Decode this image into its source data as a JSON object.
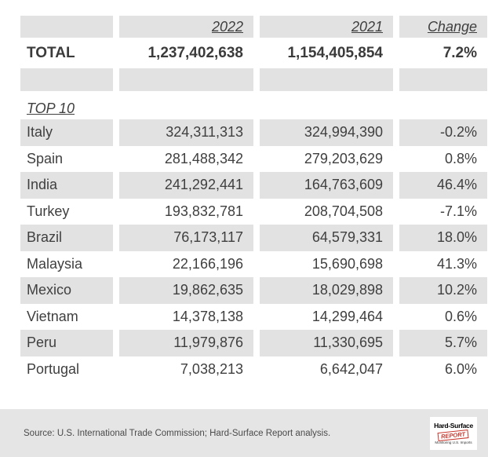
{
  "chart_data": {
    "type": "table",
    "columns": [
      "",
      "2022",
      "2021",
      "Change"
    ],
    "total": {
      "label": "TOTAL",
      "y2022": 1237402638,
      "y2021": 1154405854,
      "change_pct": 7.2
    },
    "section": "TOP 10",
    "rows": [
      {
        "country": "Italy",
        "y2022": 324311313,
        "y2021": 324994390,
        "change_pct": -0.2
      },
      {
        "country": "Spain",
        "y2022": 281488342,
        "y2021": 279203629,
        "change_pct": 0.8
      },
      {
        "country": "India",
        "y2022": 241292441,
        "y2021": 164763609,
        "change_pct": 46.4
      },
      {
        "country": "Turkey",
        "y2022": 193832781,
        "y2021": 208704508,
        "change_pct": -7.1
      },
      {
        "country": "Brazil",
        "y2022": 76173117,
        "y2021": 64579331,
        "change_pct": 18.0
      },
      {
        "country": "Malaysia",
        "y2022": 22166196,
        "y2021": 15690698,
        "change_pct": 41.3
      },
      {
        "country": "Mexico",
        "y2022": 19862635,
        "y2021": 18029898,
        "change_pct": 10.2
      },
      {
        "country": "Vietnam",
        "y2022": 14378138,
        "y2021": 14299464,
        "change_pct": 0.6
      },
      {
        "country": "Peru",
        "y2022": 11979876,
        "y2021": 11330695,
        "change_pct": 5.7
      },
      {
        "country": "Portugal",
        "y2022": 7038213,
        "y2021": 6642047,
        "change_pct": 6.0
      }
    ]
  },
  "table": {
    "columns": [
      "",
      "2022",
      "2021",
      "Change"
    ],
    "total": {
      "label": "TOTAL",
      "v2022": "1,237,402,638",
      "v2021": "1,154,405,854",
      "change": "7.2%"
    },
    "section_heading": "TOP 10",
    "rows": [
      {
        "label": "Italy",
        "v2022": "324,311,313",
        "v2021": "324,994,390",
        "change": "-0.2%"
      },
      {
        "label": "Spain",
        "v2022": "281,488,342",
        "v2021": "279,203,629",
        "change": "0.8%"
      },
      {
        "label": "India",
        "v2022": "241,292,441",
        "v2021": "164,763,609",
        "change": "46.4%"
      },
      {
        "label": "Turkey",
        "v2022": "193,832,781",
        "v2021": "208,704,508",
        "change": "-7.1%"
      },
      {
        "label": "Brazil",
        "v2022": "76,173,117",
        "v2021": "64,579,331",
        "change": "18.0%"
      },
      {
        "label": "Malaysia",
        "v2022": "22,166,196",
        "v2021": "15,690,698",
        "change": "41.3%"
      },
      {
        "label": "Mexico",
        "v2022": "19,862,635",
        "v2021": "18,029,898",
        "change": "10.2%"
      },
      {
        "label": "Vietnam",
        "v2022": "14,378,138",
        "v2021": "14,299,464",
        "change": "0.6%"
      },
      {
        "label": "Peru",
        "v2022": "11,979,876",
        "v2021": "11,330,695",
        "change": "5.7%"
      },
      {
        "label": "Portugal",
        "v2022": "7,038,213",
        "v2021": "6,642,047",
        "change": "6.0%"
      }
    ]
  },
  "footer": {
    "source": "Source: U.S. International Trade Commission; Hard-Surface Report analysis.",
    "logo": {
      "brand": "Hard-Surface",
      "stamp": "REPORT",
      "tagline": "Monitoring U.S. Imports"
    }
  },
  "colors": {
    "row_stripe": "#e2e2e2",
    "footer_band": "#e5e5e5",
    "text": "#3f3f3f",
    "logo_red": "#c8372d",
    "background": "#ffffff"
  }
}
